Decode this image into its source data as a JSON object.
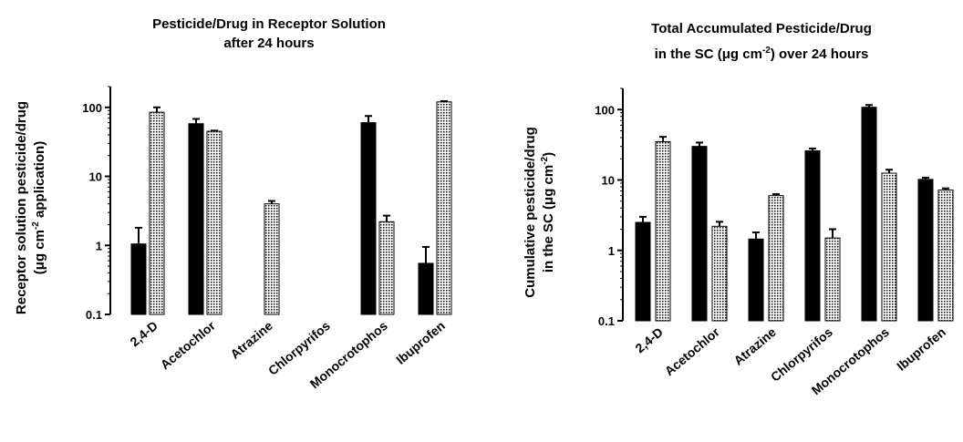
{
  "colors": {
    "solid": "#000000",
    "hatched_bg": "#ffffff",
    "hatched_line": "#000000"
  },
  "chart_data": [
    {
      "type": "bar",
      "title_line1": "Pesticide/Drug in Receptor Solution",
      "title_line2": "after 24 hours",
      "ylabel_line1": "Receptor solution pesticide/drug",
      "ylabel_line2": "(μg cm",
      "ylabel_sup": "-2",
      "ylabel_line2_end": " application)",
      "yscale": "log",
      "ylim": [
        0.1,
        200
      ],
      "yticks": [
        "0.1",
        "1",
        "10",
        "100"
      ],
      "categories": [
        "2,4-D",
        "Acetochlor",
        "Atrazine",
        "Chlorpyrifos",
        "Monocrotophos",
        "Ibuprofen"
      ],
      "series": [
        {
          "pattern": "solid",
          "values": [
            1.05,
            58,
            null,
            null,
            60,
            0.55
          ],
          "errors": [
            0.75,
            10,
            null,
            null,
            15,
            0.4
          ]
        },
        {
          "pattern": "hatched",
          "values": [
            85,
            45,
            4.0,
            null,
            2.2,
            120
          ],
          "errors": [
            15,
            1,
            0.4,
            null,
            0.5,
            3
          ]
        }
      ]
    },
    {
      "type": "bar",
      "title_line1": "Total Accumulated Pesticide/Drug",
      "title_line2_pre": "in the SC (μg cm",
      "title_line2_sup": "-2",
      "title_line2_post": ") over 24 hours",
      "ylabel_line1": "Cumulative pesticide/drug",
      "ylabel_line2": "in the SC (μg cm",
      "ylabel_sup": "-2",
      "ylabel_line2_end": ")",
      "yscale": "log",
      "ylim": [
        0.1,
        200
      ],
      "yticks": [
        "0.1",
        "1",
        "10",
        "100"
      ],
      "categories": [
        "2,4-D",
        "Acetochlor",
        "Atrazine",
        "Chlorpyrifos",
        "Monocrotophos",
        "Ibuprofen"
      ],
      "series": [
        {
          "pattern": "solid",
          "values": [
            2.5,
            30,
            1.45,
            26,
            108,
            10.2
          ],
          "errors": [
            0.5,
            4,
            0.35,
            2,
            8,
            0.6
          ]
        },
        {
          "pattern": "hatched",
          "values": [
            35,
            2.2,
            6.0,
            1.5,
            12.5,
            7.2
          ],
          "errors": [
            6,
            0.35,
            0.3,
            0.5,
            1.5,
            0.4
          ]
        }
      ]
    }
  ]
}
